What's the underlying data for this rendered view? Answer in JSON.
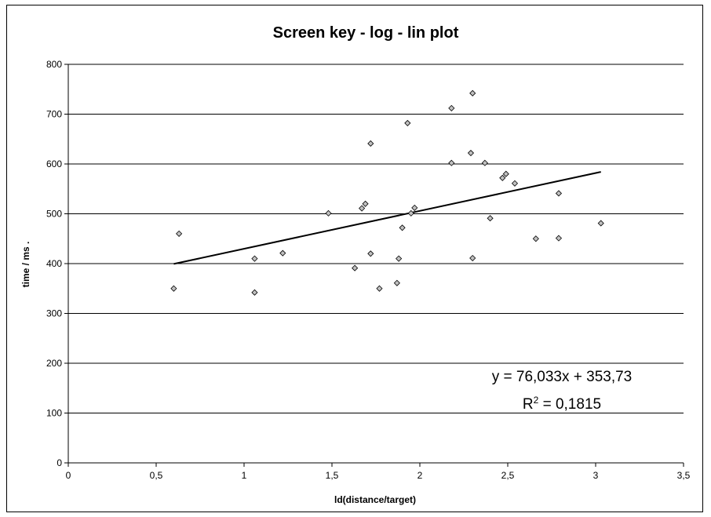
{
  "chart_data": {
    "type": "scatter",
    "title": "Screen key - log - lin plot",
    "xlabel": "ld(distance/target)",
    "ylabel": "time / ms .",
    "xlim": [
      0,
      3.5
    ],
    "ylim": [
      0,
      800
    ],
    "x_ticks": [
      "0",
      "0,5",
      "1",
      "1,5",
      "2",
      "2,5",
      "3",
      "3,5"
    ],
    "y_ticks": [
      "0",
      "100",
      "200",
      "300",
      "400",
      "500",
      "600",
      "700",
      "800"
    ],
    "grid": "horizontal",
    "points": [
      {
        "x": 0.6,
        "y": 350
      },
      {
        "x": 0.63,
        "y": 460
      },
      {
        "x": 1.06,
        "y": 410
      },
      {
        "x": 1.06,
        "y": 342
      },
      {
        "x": 1.22,
        "y": 421
      },
      {
        "x": 1.48,
        "y": 501
      },
      {
        "x": 1.63,
        "y": 391
      },
      {
        "x": 1.67,
        "y": 511
      },
      {
        "x": 1.69,
        "y": 520
      },
      {
        "x": 1.72,
        "y": 641
      },
      {
        "x": 1.72,
        "y": 420
      },
      {
        "x": 1.77,
        "y": 350
      },
      {
        "x": 1.87,
        "y": 361
      },
      {
        "x": 1.88,
        "y": 410
      },
      {
        "x": 1.9,
        "y": 472
      },
      {
        "x": 1.93,
        "y": 682
      },
      {
        "x": 1.95,
        "y": 501
      },
      {
        "x": 1.97,
        "y": 512
      },
      {
        "x": 2.18,
        "y": 712
      },
      {
        "x": 2.18,
        "y": 602
      },
      {
        "x": 2.29,
        "y": 622
      },
      {
        "x": 2.3,
        "y": 742
      },
      {
        "x": 2.3,
        "y": 411
      },
      {
        "x": 2.37,
        "y": 602
      },
      {
        "x": 2.4,
        "y": 491
      },
      {
        "x": 2.47,
        "y": 572
      },
      {
        "x": 2.49,
        "y": 580
      },
      {
        "x": 2.54,
        "y": 561
      },
      {
        "x": 2.66,
        "y": 450
      },
      {
        "x": 2.79,
        "y": 541
      },
      {
        "x": 2.79,
        "y": 451
      },
      {
        "x": 3.03,
        "y": 481
      }
    ],
    "trendline": {
      "x": [
        0.6,
        3.03
      ],
      "slope": 76.033,
      "intercept": 353.73
    },
    "equation": "y = 76,033x + 353,73",
    "r2_prefix": "R",
    "r2_sup": "2",
    "r2_value": " = 0,1815",
    "colors": {
      "marker_fill": "#c0c0c0",
      "marker_stroke": "#000000",
      "grid": "#000000",
      "line": "#000000"
    }
  }
}
